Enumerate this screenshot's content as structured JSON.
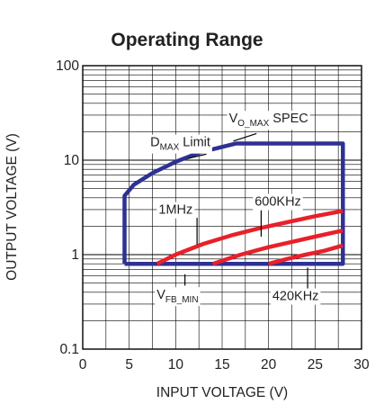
{
  "chart_data": {
    "type": "line",
    "title": "Operating Range",
    "xlabel": "INPUT VOLTAGE (V)",
    "ylabel": "OUTPUT VOLTAGE (V)",
    "x_scale": "linear",
    "y_scale": "log",
    "xlim": [
      0,
      30
    ],
    "ylim": [
      0.1,
      100
    ],
    "x_ticks": [
      0,
      5,
      10,
      15,
      20,
      25,
      30
    ],
    "x_tick_labels": [
      "0",
      "5",
      "10",
      "15",
      "20",
      "25",
      "30"
    ],
    "y_ticks": [
      0.1,
      1,
      10,
      100
    ],
    "y_tick_labels": [
      "0.1",
      "1",
      "10",
      "100"
    ],
    "grid": true,
    "colors": {
      "boundary": "#2e3192",
      "frequency": "#e8202a",
      "grid": "#000000"
    },
    "series": [
      {
        "role": "boundary",
        "color": "#2e3192",
        "x": [
          4.5,
          4.5,
          5.5,
          7.5,
          10,
          12.5,
          16.5,
          28,
          28,
          4.5
        ],
        "y": [
          0.8,
          4.2,
          5.5,
          7.3,
          9.6,
          12,
          15,
          15,
          0.8,
          0.8
        ]
      },
      {
        "role": "frequency",
        "color": "#e8202a",
        "x": [
          8,
          10,
          13,
          16,
          19,
          22,
          25,
          28
        ],
        "y": [
          0.8,
          1.0,
          1.3,
          1.6,
          1.9,
          2.2,
          2.55,
          2.9
        ]
      },
      {
        "role": "frequency",
        "color": "#e8202a",
        "x": [
          14,
          17,
          20,
          23,
          25,
          28
        ],
        "y": [
          0.8,
          1.0,
          1.2,
          1.4,
          1.55,
          1.8
        ]
      },
      {
        "role": "frequency",
        "color": "#e8202a",
        "x": [
          20,
          22,
          24,
          26,
          28
        ],
        "y": [
          0.8,
          0.9,
          1.0,
          1.1,
          1.25
        ]
      }
    ],
    "annotations": [
      {
        "main": "D",
        "sub": "MAX",
        "rest": " Limit",
        "x": 10.5,
        "y": 14
      },
      {
        "main": "V",
        "sub": "O_MAX",
        "rest": " SPEC",
        "x": 20,
        "y": 25
      },
      {
        "main": "1MHz",
        "sub": "",
        "rest": "",
        "x": 10,
        "y": 2.7
      },
      {
        "main": "600KHz",
        "sub": "",
        "rest": "",
        "x": 21,
        "y": 3.3
      },
      {
        "main": "V",
        "sub": "FB_MIN",
        "rest": "",
        "x": 10.2,
        "y": 0.34
      },
      {
        "main": "420KHz",
        "sub": "",
        "rest": "",
        "x": 22.9,
        "y": 0.33
      }
    ],
    "leaders": [
      {
        "from": [
          11.3,
          10.4
        ],
        "to": [
          13.3,
          11.6
        ]
      },
      {
        "from": [
          18.7,
          19.1
        ],
        "to": [
          16.2,
          15.9
        ]
      },
      {
        "from": [
          12.3,
          2.45
        ],
        "to": [
          12.3,
          1.28
        ]
      },
      {
        "from": [
          19.2,
          2.95
        ],
        "to": [
          19.2,
          1.55
        ]
      },
      {
        "from": [
          11.0,
          0.47
        ],
        "to": [
          11.0,
          0.62
        ]
      },
      {
        "from": [
          24.2,
          0.42
        ],
        "to": [
          24.2,
          0.73
        ]
      }
    ]
  }
}
